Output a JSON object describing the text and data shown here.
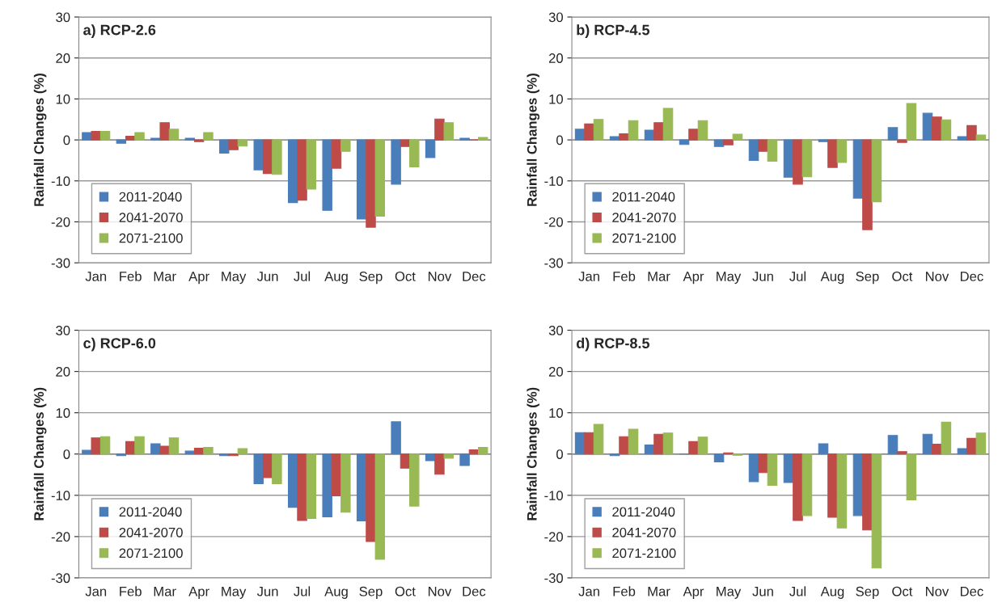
{
  "chart_data": [
    {
      "type": "bar",
      "title": "a) RCP-2.6",
      "ylabel": "Rainfall Changes (%)",
      "categories": [
        "Jan",
        "Feb",
        "Mar",
        "Apr",
        "May",
        "Jun",
        "Jul",
        "Aug",
        "Sep",
        "Oct",
        "Nov",
        "Dec"
      ],
      "ylim": [
        -30,
        30
      ],
      "yticks": [
        -30,
        -20,
        -10,
        0,
        10,
        20,
        30
      ],
      "grid": "y",
      "legend": "bottom left",
      "series": [
        {
          "name": "2011-2040",
          "color": "#4a7ebb",
          "values": [
            1.8,
            -0.8,
            0.4,
            0.4,
            -3.2,
            -7.3,
            -15.3,
            -17.2,
            -19.3,
            -10.8,
            -4.3,
            0.4
          ]
        },
        {
          "name": "2041-2070",
          "color": "#be4b48",
          "values": [
            2.1,
            0.9,
            4.2,
            -0.4,
            -2.4,
            -8.2,
            -14.7,
            -6.9,
            -21.3,
            -1.6,
            5.1,
            0
          ]
        },
        {
          "name": "2071-2100",
          "color": "#98b954",
          "values": [
            2.1,
            1.8,
            2.6,
            1.8,
            -1.5,
            -8.4,
            -12,
            -2.8,
            -18.6,
            -6.6,
            4.2,
            0.6
          ]
        }
      ]
    },
    {
      "type": "bar",
      "title": "b) RCP-4.5",
      "ylabel": "Rainfall Changes (%)",
      "categories": [
        "Jan",
        "Feb",
        "Mar",
        "Apr",
        "May",
        "Jun",
        "Jul",
        "Aug",
        "Sep",
        "Oct",
        "Nov",
        "Dec"
      ],
      "ylim": [
        -30,
        30
      ],
      "yticks": [
        -30,
        -20,
        -10,
        0,
        10,
        20,
        30
      ],
      "grid": "y",
      "legend": "bottom left",
      "series": [
        {
          "name": "2011-2040",
          "color": "#4a7ebb",
          "values": [
            2.6,
            0.8,
            2.4,
            -1.1,
            -1.6,
            -5.0,
            -9.1,
            -0.4,
            -14.2,
            3.0,
            6.5,
            0.8
          ]
        },
        {
          "name": "2041-2070",
          "color": "#be4b48",
          "values": [
            3.9,
            1.5,
            4.2,
            2.6,
            -1.2,
            -2.8,
            -10.8,
            -6.7,
            -21.9,
            -0.6,
            5.6,
            3.5
          ]
        },
        {
          "name": "2071-2100",
          "color": "#98b954",
          "values": [
            5.0,
            4.7,
            7.7,
            4.7,
            1.4,
            -5.2,
            -9.0,
            -5.5,
            -15.1,
            8.9,
            4.9,
            1.2
          ]
        }
      ]
    },
    {
      "type": "bar",
      "title": "c) RCP-6.0",
      "ylabel": "Rainfall Changes (%)",
      "categories": [
        "Jan",
        "Feb",
        "Mar",
        "Apr",
        "May",
        "Jun",
        "Jul",
        "Aug",
        "Sep",
        "Oct",
        "Nov",
        "Dec"
      ],
      "ylim": [
        -30,
        30
      ],
      "yticks": [
        -30,
        -20,
        -10,
        0,
        10,
        20,
        30
      ],
      "grid": "y",
      "legend": "bottom left",
      "series": [
        {
          "name": "2011-2040",
          "color": "#4a7ebb",
          "values": [
            0.9,
            -0.4,
            2.5,
            0.7,
            -0.4,
            -7.2,
            -12.9,
            -15.2,
            -16.2,
            7.8,
            -1.6,
            -2.8
          ]
        },
        {
          "name": "2041-2070",
          "color": "#be4b48",
          "values": [
            3.9,
            3.0,
            1.9,
            1.4,
            -0.4,
            -5.7,
            -16.1,
            -10.1,
            -21.2,
            -3.4,
            -4.9,
            1.0
          ]
        },
        {
          "name": "2071-2100",
          "color": "#98b954",
          "values": [
            4.2,
            4.2,
            3.9,
            1.6,
            1.3,
            -7.2,
            -15.6,
            -14.1,
            -25.5,
            -12.6,
            -1.0,
            1.6
          ]
        }
      ]
    },
    {
      "type": "bar",
      "title": "d) RCP-8.5",
      "ylabel": "Rainfall Changes (%)",
      "categories": [
        "Jan",
        "Feb",
        "Mar",
        "Apr",
        "May",
        "Jun",
        "Jul",
        "Aug",
        "Sep",
        "Oct",
        "Nov",
        "Dec"
      ],
      "ylim": [
        -30,
        30
      ],
      "yticks": [
        -30,
        -20,
        -10,
        0,
        10,
        20,
        30
      ],
      "grid": "y",
      "legend": "bottom left",
      "series": [
        {
          "name": "2011-2040",
          "color": "#4a7ebb",
          "values": [
            5.2,
            -0.4,
            2.2,
            0,
            -1.9,
            -6.7,
            -6.9,
            2.5,
            -14.9,
            4.5,
            4.8,
            1.3
          ]
        },
        {
          "name": "2041-2070",
          "color": "#be4b48",
          "values": [
            5.2,
            4.2,
            4.8,
            3.0,
            0.3,
            -4.5,
            -16.1,
            -15.3,
            -18.4,
            0.6,
            2.4,
            3.8
          ]
        },
        {
          "name": "2071-2100",
          "color": "#98b954",
          "values": [
            7.2,
            6.0,
            5.1,
            4.1,
            -0.3,
            -7.6,
            -14.9,
            -17.9,
            -27.6,
            -11.1,
            7.7,
            5.1
          ]
        }
      ]
    }
  ]
}
